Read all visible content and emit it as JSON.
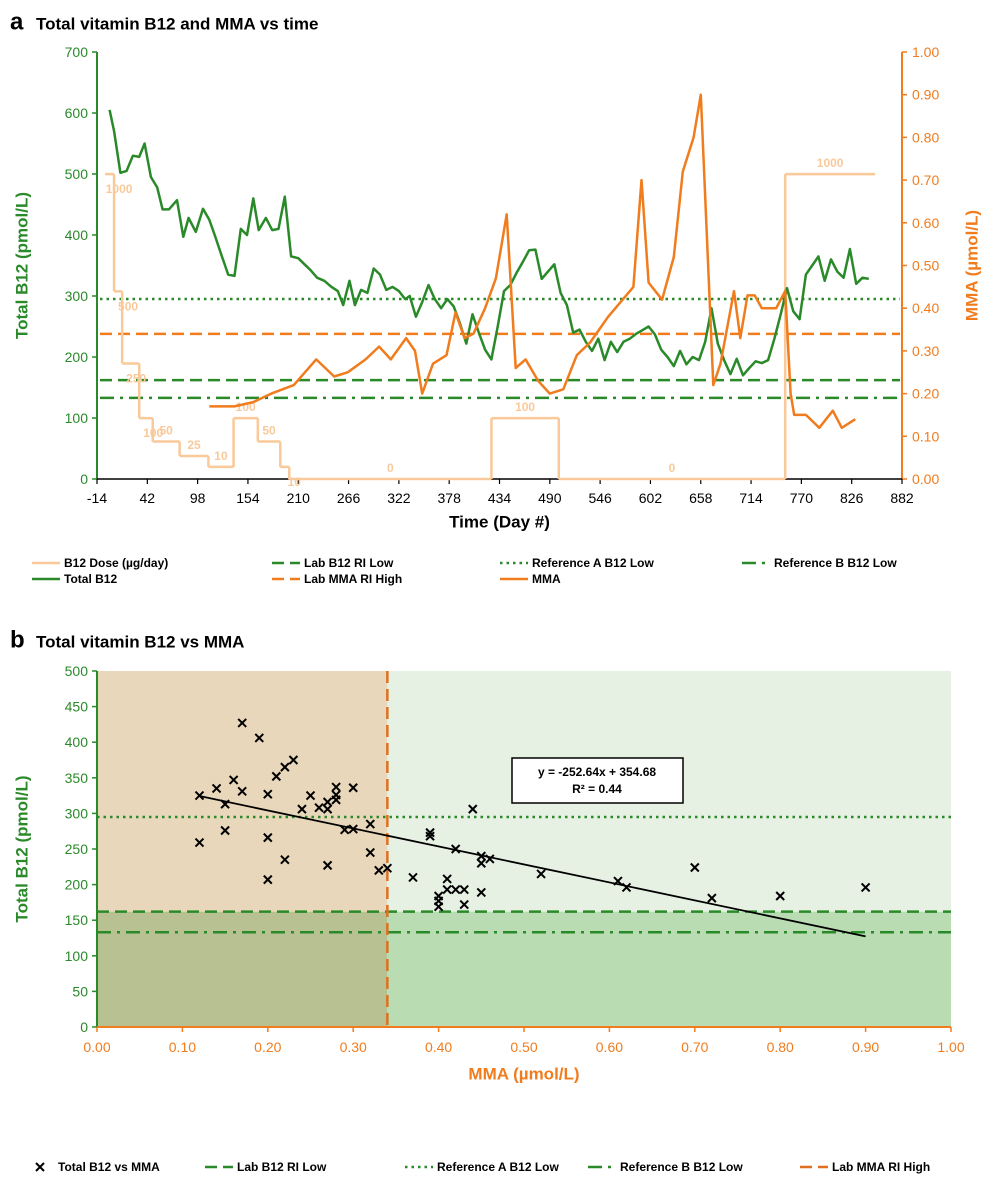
{
  "chart_data": [
    {
      "type": "line",
      "panel": "a",
      "title": "Total vitamin B12 and MMA vs time",
      "x_label": "Time (Day #)",
      "y_label": "Total B12 (pmol/L)",
      "y2_label": "MMA (µmol/L)",
      "xlim": [
        -14,
        882
      ],
      "xticks": [
        -14,
        42,
        98,
        154,
        210,
        266,
        322,
        378,
        434,
        490,
        546,
        602,
        658,
        714,
        770,
        826,
        882
      ],
      "ylim": [
        0,
        700
      ],
      "yticks": [
        0,
        100,
        200,
        300,
        400,
        500,
        600,
        700
      ],
      "y2lim": [
        0,
        1
      ],
      "y2ticks": [
        {
          "value": 0,
          "label": "0.00"
        },
        {
          "value": 0.1,
          "label": "0.10"
        },
        {
          "value": 0.2,
          "label": "0.20"
        },
        {
          "value": 0.3,
          "label": "0.30"
        },
        {
          "value": 0.4,
          "label": "0.40"
        },
        {
          "value": 0.5,
          "label": "0.50"
        },
        {
          "value": 0.6,
          "label": "0.60"
        },
        {
          "value": 0.7,
          "label": "0.70"
        },
        {
          "value": 0.8,
          "label": "0.80"
        },
        {
          "value": 0.9,
          "label": "0.90"
        },
        {
          "value": 1,
          "label": "1.00"
        }
      ],
      "x_axis_color": "#000000",
      "y_axis_color": "#2a8a2a",
      "y2_axis_color": "#f07c1e",
      "series": [
        {
          "name": "B12 Dose (µg/day)",
          "color": "#f9c99a",
          "style": "step",
          "axis": "y3",
          "x": [
            -5,
            5,
            14,
            33,
            48,
            78,
            110,
            138,
            165,
            190,
            200,
            425,
            500,
            752,
            852
          ],
          "values": [
            1000,
            500,
            250,
            100,
            50,
            25,
            10,
            100,
            50,
            10,
            0,
            100,
            0,
            1000,
            1000
          ]
        },
        {
          "name": "Total B12",
          "color": "#2a8a2a",
          "x": [
            0,
            5,
            12,
            19,
            26,
            33,
            39,
            46,
            53,
            59,
            66,
            75,
            82,
            88,
            96,
            104,
            111,
            117,
            125,
            132,
            139,
            146,
            153,
            160,
            166,
            174,
            181,
            188,
            195,
            202,
            210,
            217,
            224,
            231,
            239,
            247,
            254,
            260,
            267,
            273,
            280,
            287,
            294,
            301,
            308,
            315,
            322,
            329,
            334,
            341,
            348,
            355,
            362,
            369,
            376,
            383,
            390,
            397,
            404,
            411,
            418,
            425,
            432,
            439,
            446,
            453,
            460,
            467,
            474,
            481,
            488,
            495,
            502,
            509,
            516,
            523,
            530,
            537,
            544,
            551,
            558,
            565,
            572,
            579,
            586,
            593,
            600,
            607,
            614,
            621,
            628,
            635,
            642,
            649,
            656,
            663,
            670,
            677,
            684,
            691,
            698,
            705,
            712,
            719,
            726,
            733,
            740,
            747,
            754,
            761,
            768,
            775,
            782,
            789,
            796,
            803,
            810,
            817,
            824,
            831,
            838,
            845
          ],
          "values": [
            605,
            570,
            502,
            505,
            530,
            528,
            550,
            495,
            478,
            442,
            442,
            457,
            397,
            428,
            405,
            443,
            425,
            400,
            365,
            335,
            333,
            410,
            400,
            460,
            408,
            428,
            408,
            410,
            463,
            365,
            362,
            352,
            342,
            330,
            325,
            315,
            308,
            285,
            325,
            285,
            310,
            305,
            345,
            335,
            310,
            315,
            308,
            295,
            300,
            266,
            290,
            318,
            295,
            280,
            295,
            283,
            255,
            222,
            270,
            240,
            212,
            196,
            250,
            308,
            318,
            338,
            356,
            375,
            376,
            328,
            340,
            352,
            305,
            285,
            240,
            245,
            225,
            210,
            230,
            195,
            225,
            208,
            225,
            230,
            238,
            244,
            250,
            237,
            212,
            200,
            185,
            210,
            188,
            200,
            195,
            225,
            280,
            222,
            195,
            172,
            197,
            170,
            182,
            193,
            190,
            195,
            230,
            270,
            313,
            275,
            262,
            335,
            350,
            365,
            325,
            360,
            340,
            330,
            377,
            320,
            330,
            328
          ]
        },
        {
          "name": "MMA",
          "color": "#f07c1e",
          "axis": "y2",
          "x": [
            111,
            139,
            160,
            180,
            205,
            230,
            250,
            265,
            285,
            300,
            313,
            330,
            340,
            348,
            360,
            375,
            385,
            395,
            405,
            418,
            430,
            442,
            452,
            463,
            477,
            490,
            505,
            520,
            535,
            555,
            575,
            583,
            592,
            600,
            615,
            628,
            638,
            650,
            658,
            672,
            680,
            695,
            702,
            710,
            718,
            726,
            733,
            742,
            752,
            758,
            762,
            775,
            790,
            805,
            815,
            830
          ],
          "values": [
            0.17,
            0.17,
            0.18,
            0.2,
            0.22,
            0.28,
            0.24,
            0.25,
            0.28,
            0.31,
            0.28,
            0.33,
            0.3,
            0.2,
            0.27,
            0.29,
            0.39,
            0.33,
            0.34,
            0.4,
            0.47,
            0.62,
            0.26,
            0.28,
            0.23,
            0.2,
            0.21,
            0.29,
            0.32,
            0.38,
            0.43,
            0.45,
            0.7,
            0.46,
            0.42,
            0.52,
            0.72,
            0.8,
            0.9,
            0.22,
            0.27,
            0.44,
            0.33,
            0.43,
            0.43,
            0.4,
            0.4,
            0.4,
            0.44,
            0.2,
            0.15,
            0.15,
            0.12,
            0.16,
            0.12,
            0.14
          ]
        }
      ],
      "reference_lines": [
        {
          "name": "Lab B12 RI Low",
          "value": 162,
          "color": "#2a8a2a",
          "dash": "dashed"
        },
        {
          "name": "Reference A B12 Low",
          "value": 295,
          "color": "#2a8a2a",
          "dash": "dotted"
        },
        {
          "name": "Reference B B12 Low",
          "value": 133,
          "color": "#2a8a2a",
          "dash": "dash-dot"
        },
        {
          "name": "Lab MMA RI High",
          "value": 0.34,
          "axis": "y2",
          "color": "#f07c1e",
          "dash": "dashed"
        }
      ]
    },
    {
      "type": "scatter",
      "panel": "b",
      "title": "Total vitamin B12 vs MMA",
      "x_label": "MMA (µmol/L)",
      "y_label": "Total B12 (pmol/L)",
      "xlim": [
        0,
        1
      ],
      "xticks": [
        {
          "value": 0,
          "label": "0.00"
        },
        {
          "value": 0.1,
          "label": "0.10"
        },
        {
          "value": 0.2,
          "label": "0.20"
        },
        {
          "value": 0.3,
          "label": "0.30"
        },
        {
          "value": 0.4,
          "label": "0.40"
        },
        {
          "value": 0.5,
          "label": "0.50"
        },
        {
          "value": 0.6,
          "label": "0.60"
        },
        {
          "value": 0.7,
          "label": "0.70"
        },
        {
          "value": 0.8,
          "label": "0.80"
        },
        {
          "value": 0.9,
          "label": "0.90"
        },
        {
          "value": 1,
          "label": "1.00"
        }
      ],
      "ylim": [
        0,
        500
      ],
      "yticks": [
        0,
        50,
        100,
        150,
        200,
        250,
        300,
        350,
        400,
        450,
        500
      ],
      "x_axis_color": "#f07c1e",
      "y_axis_color": "#2a8a2a",
      "series": [
        {
          "name": "Total B12 vs MMA",
          "color": "#000000",
          "marker": "x",
          "x": [
            0.12,
            0.12,
            0.14,
            0.15,
            0.15,
            0.16,
            0.17,
            0.17,
            0.19,
            0.2,
            0.2,
            0.2,
            0.21,
            0.22,
            0.22,
            0.23,
            0.24,
            0.25,
            0.26,
            0.27,
            0.27,
            0.27,
            0.28,
            0.28,
            0.28,
            0.29,
            0.3,
            0.3,
            0.32,
            0.32,
            0.33,
            0.34,
            0.37,
            0.39,
            0.39,
            0.4,
            0.4,
            0.4,
            0.41,
            0.41,
            0.42,
            0.42,
            0.43,
            0.43,
            0.44,
            0.45,
            0.45,
            0.45,
            0.46,
            0.52,
            0.61,
            0.62,
            0.7,
            0.72,
            0.8,
            0.9
          ],
          "values": [
            325,
            259,
            335,
            313,
            276,
            347,
            427,
            331,
            406,
            327,
            266,
            207,
            352,
            365,
            235,
            375,
            306,
            325,
            308,
            316,
            306,
            227,
            337,
            326,
            319,
            277,
            336,
            278,
            285,
            245,
            220,
            223,
            210,
            273,
            268,
            184,
            177,
            169,
            208,
            193,
            193,
            250,
            193,
            172,
            306,
            240,
            230,
            189,
            236,
            215,
            205,
            196,
            224,
            181,
            184,
            196
          ]
        }
      ],
      "trendline": {
        "equation": "y = -252.64x + 354.68",
        "r_squared": "R² = 0.44",
        "slope": -252.64,
        "intercept": 354.68,
        "x": [
          0.12,
          0.9
        ],
        "color": "#000000"
      },
      "reference_lines": [
        {
          "name": "Lab B12 RI Low",
          "value": 162,
          "color": "#2a8a2a",
          "dash": "dashed"
        },
        {
          "name": "Reference A B12 Low",
          "value": 295,
          "color": "#2a8a2a",
          "dash": "dotted"
        },
        {
          "name": "Reference B B12 Low",
          "value": 133,
          "color": "#2a8a2a",
          "dash": "dash-dot"
        },
        {
          "name": "Lab MMA RI High",
          "value": 0.34,
          "orientation": "vertical",
          "color": "#e07020",
          "dash": "dashed"
        }
      ]
    }
  ]
}
